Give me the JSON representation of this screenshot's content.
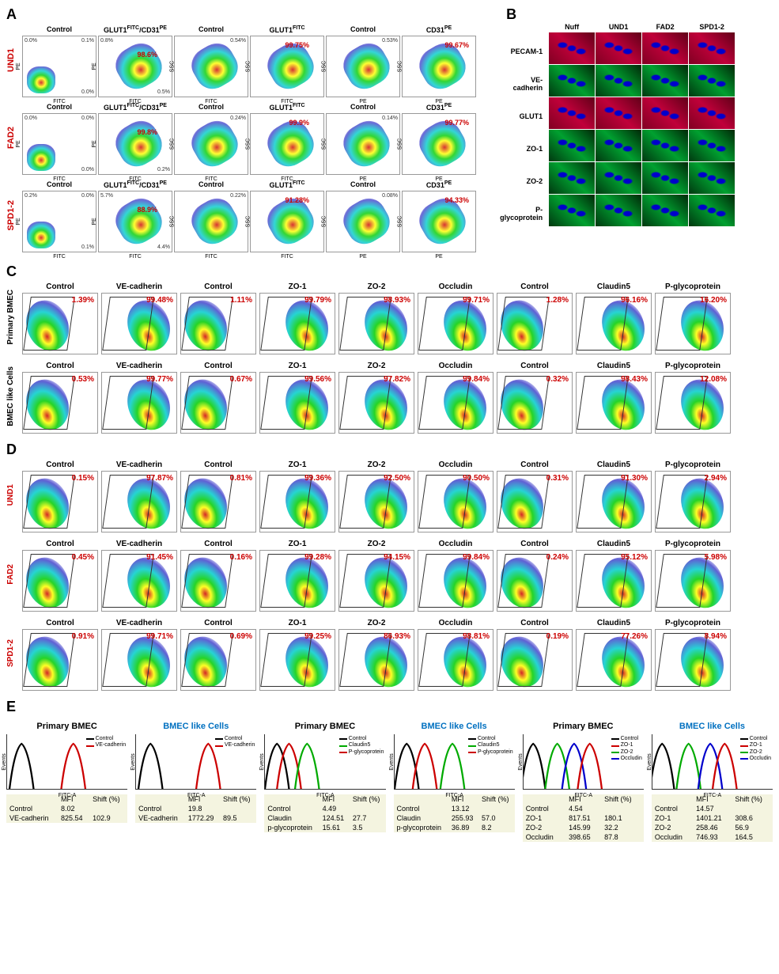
{
  "panelA": {
    "label": "A",
    "rows": [
      {
        "name": "UND1",
        "plots": [
          {
            "title": "Control",
            "yaxis": "PE",
            "xaxis": "FITC",
            "corners": [
              "0.0%",
              "0.1%",
              "",
              "0.0%"
            ],
            "dotsClass": "corner"
          },
          {
            "title": "GLUT1<sup>FITC</sup>/CD31<sup>PE</sup>",
            "yaxis": "PE",
            "xaxis": "FITC",
            "value": "98.6%",
            "valuePos": "top:18px;right:18px;",
            "corners": [
              "0.8%",
              "",
              "",
              "0.5%"
            ],
            "dotsClass": "diag"
          },
          {
            "title": "Control",
            "yaxis": "SSC",
            "xaxis": "FITC",
            "corners": [
              "",
              "0.54%",
              "",
              ""
            ],
            "dotsClass": "diag"
          },
          {
            "title": "GLUT1<sup>FITC</sup>",
            "yaxis": "SSC",
            "xaxis": "FITC",
            "value": "99.75%",
            "valuePos": "top:6px;right:18px;",
            "dotsClass": "diag"
          },
          {
            "title": "Control",
            "yaxis": "SSC",
            "xaxis": "PE",
            "corners": [
              "",
              "0.53%",
              "",
              ""
            ],
            "dotsClass": "diag"
          },
          {
            "title": "CD31<sup>PE</sup>",
            "yaxis": "SSC",
            "xaxis": "PE",
            "value": "99.67%",
            "valuePos": "top:6px;right:8px;",
            "dotsClass": "diag"
          }
        ]
      },
      {
        "name": "FAD2",
        "plots": [
          {
            "title": "Control",
            "yaxis": "PE",
            "xaxis": "FITC",
            "corners": [
              "0.0%",
              "0.0%",
              "",
              "0.0%"
            ],
            "dotsClass": "corner"
          },
          {
            "title": "GLUT1<sup>FITC</sup>/CD31<sup>PE</sup>",
            "yaxis": "PE",
            "xaxis": "FITC",
            "value": "99.8%",
            "valuePos": "top:18px;right:18px;",
            "corners": [
              "",
              "",
              "",
              "0.2%"
            ],
            "dotsClass": "diag"
          },
          {
            "title": "Control",
            "yaxis": "SSC",
            "xaxis": "FITC",
            "corners": [
              "",
              "0.24%",
              "",
              ""
            ],
            "dotsClass": "diag"
          },
          {
            "title": "GLUT1<sup>FITC</sup>",
            "yaxis": "SSC",
            "xaxis": "FITC",
            "value": "99.9%",
            "valuePos": "top:6px;right:18px;",
            "dotsClass": "diag"
          },
          {
            "title": "Control",
            "yaxis": "SSC",
            "xaxis": "PE",
            "corners": [
              "",
              "0.14%",
              "",
              ""
            ],
            "dotsClass": "diag"
          },
          {
            "title": "CD31<sup>PE</sup>",
            "yaxis": "SSC",
            "xaxis": "PE",
            "value": "99.77%",
            "valuePos": "top:6px;right:8px;",
            "dotsClass": "diag"
          }
        ]
      },
      {
        "name": "SPD1-2",
        "plots": [
          {
            "title": "Control",
            "yaxis": "PE",
            "xaxis": "FITC",
            "corners": [
              "0.2%",
              "0.0%",
              "",
              "0.1%"
            ],
            "dotsClass": "corner"
          },
          {
            "title": "GLUT1<sup>FITC</sup>/CD31<sup>PE</sup>",
            "yaxis": "PE",
            "xaxis": "FITC",
            "value": "88.9%",
            "valuePos": "top:18px;right:18px;",
            "corners": [
              "5.7%",
              "",
              "",
              "4.4%"
            ],
            "dotsClass": "diag"
          },
          {
            "title": "Control",
            "yaxis": "SSC",
            "xaxis": "FITC",
            "corners": [
              "",
              "0.22%",
              "",
              ""
            ],
            "dotsClass": "diag"
          },
          {
            "title": "GLUT1<sup>FITC</sup>",
            "yaxis": "SSC",
            "xaxis": "FITC",
            "value": "91.28%",
            "valuePos": "top:6px;right:18px;",
            "dotsClass": "diag"
          },
          {
            "title": "Control",
            "yaxis": "SSC",
            "xaxis": "PE",
            "corners": [
              "",
              "0.08%",
              "",
              ""
            ],
            "dotsClass": "diag"
          },
          {
            "title": "CD31<sup>PE</sup>",
            "yaxis": "SSC",
            "xaxis": "PE",
            "value": "94.33%",
            "valuePos": "top:6px;right:8px;",
            "dotsClass": "diag"
          }
        ]
      }
    ]
  },
  "panelB": {
    "label": "B",
    "cols": [
      "Nuff",
      "UND1",
      "FAD2",
      "SPD1-2"
    ],
    "rows": [
      {
        "label": "PECAM-1",
        "color": "red"
      },
      {
        "label": "VE-cadherin",
        "color": "green"
      },
      {
        "label": "GLUT1",
        "color": "red"
      },
      {
        "label": "ZO-1",
        "color": "green"
      },
      {
        "label": "ZO-2",
        "color": "green"
      },
      {
        "label": "P-glycoprotein",
        "color": "green"
      }
    ]
  },
  "panelC": {
    "label": "C",
    "markers": [
      "Control",
      "VE-cadherin",
      "Control",
      "ZO-1",
      "ZO-2",
      "Occludin",
      "Control",
      "Claudin5",
      "P-glycoprotein"
    ],
    "rows": [
      {
        "name": "Primary BMEC",
        "values": [
          "1.39%",
          "99.48%",
          "1.11%",
          "99.79%",
          "98.93%",
          "99.71%",
          "1.28%",
          "96.16%",
          "16.20%"
        ],
        "red": false
      },
      {
        "name": "BMEC like Cells",
        "values": [
          "0.53%",
          "99.77%",
          "0.67%",
          "99.56%",
          "97.82%",
          "99.84%",
          "0.32%",
          "98.43%",
          "12.08%"
        ],
        "red": false
      }
    ]
  },
  "panelD": {
    "label": "D",
    "markers": [
      "Control",
      "VE-cadherin",
      "Control",
      "ZO-1",
      "ZO-2",
      "Occludin",
      "Control",
      "Claudin5",
      "P-glycoprotein"
    ],
    "rows": [
      {
        "name": "UND1",
        "values": [
          "0.15%",
          "97.87%",
          "0.81%",
          "99.36%",
          "92.50%",
          "90.50%",
          "0.31%",
          "91.30%",
          "2.94%"
        ],
        "red": true
      },
      {
        "name": "FAD2",
        "values": [
          "0.45%",
          "91.45%",
          "0.16%",
          "99.28%",
          "94.15%",
          "99.84%",
          "0.24%",
          "95.12%",
          "5.98%"
        ],
        "red": true
      },
      {
        "name": "SPD1-2",
        "values": [
          "0.91%",
          "99.71%",
          "0.69%",
          "99.25%",
          "86.93%",
          "98.81%",
          "0.19%",
          "77.26%",
          "8.94%"
        ],
        "red": true
      }
    ]
  },
  "panelE": {
    "label": "E",
    "cols": [
      {
        "title": "Primary BMEC",
        "blue": false,
        "legend": [
          {
            "c": "#000",
            "l": "Control"
          },
          {
            "c": "#c00",
            "l": "VE-cadherin"
          }
        ],
        "curves": [
          {
            "c": "#000",
            "x": 12
          },
          {
            "c": "#c00",
            "x": 55
          }
        ],
        "table": {
          "headers": [
            "",
            "MFI",
            "Shift (%)"
          ],
          "rows": [
            [
              "Control",
              "8.02",
              ""
            ],
            [
              "VE-cadherin",
              "825.54",
              "102.9"
            ]
          ]
        }
      },
      {
        "title": "BMEC like Cells",
        "blue": true,
        "legend": [
          {
            "c": "#000",
            "l": "Control"
          },
          {
            "c": "#c00",
            "l": "VE-cadherin"
          }
        ],
        "curves": [
          {
            "c": "#000",
            "x": 12
          },
          {
            "c": "#c00",
            "x": 60
          }
        ],
        "table": {
          "headers": [
            "",
            "MFI",
            "Shift (%)"
          ],
          "rows": [
            [
              "Control",
              "19.8",
              ""
            ],
            [
              "VE-cadherin",
              "1772.29",
              "89.5"
            ]
          ]
        }
      },
      {
        "title": "Primary BMEC",
        "blue": false,
        "legend": [
          {
            "c": "#000",
            "l": "Control"
          },
          {
            "c": "#0a0",
            "l": "Claudin5"
          },
          {
            "c": "#c00",
            "l": "P-glycoprotein"
          }
        ],
        "curves": [
          {
            "c": "#000",
            "x": 10
          },
          {
            "c": "#c00",
            "x": 20
          },
          {
            "c": "#0a0",
            "x": 35
          }
        ],
        "table": {
          "headers": [
            "",
            "MFI",
            "Shift (%)"
          ],
          "rows": [
            [
              "Control",
              "4.49",
              ""
            ],
            [
              "Claudin",
              "124.51",
              "27.7"
            ],
            [
              "p-glycoprotein",
              "15.61",
              "3.5"
            ]
          ]
        }
      },
      {
        "title": "BMEC like Cells",
        "blue": true,
        "legend": [
          {
            "c": "#000",
            "l": "Control"
          },
          {
            "c": "#0a0",
            "l": "Claudin5"
          },
          {
            "c": "#c00",
            "l": "P-glycoprotein"
          }
        ],
        "curves": [
          {
            "c": "#000",
            "x": 10
          },
          {
            "c": "#c00",
            "x": 25
          },
          {
            "c": "#0a0",
            "x": 48
          }
        ],
        "table": {
          "headers": [
            "",
            "MFI",
            "Shift (%)"
          ],
          "rows": [
            [
              "Control",
              "13.12",
              ""
            ],
            [
              "Claudin",
              "255.93",
              "57.0"
            ],
            [
              "p-glycoprotein",
              "36.89",
              "8.2"
            ]
          ]
        }
      },
      {
        "title": "Primary BMEC",
        "blue": false,
        "legend": [
          {
            "c": "#000",
            "l": "Control"
          },
          {
            "c": "#c00",
            "l": "ZO-1"
          },
          {
            "c": "#0a0",
            "l": "ZO-2"
          },
          {
            "c": "#00c",
            "l": "Occludin"
          }
        ],
        "curves": [
          {
            "c": "#000",
            "x": 8
          },
          {
            "c": "#0a0",
            "x": 28
          },
          {
            "c": "#00c",
            "x": 42
          },
          {
            "c": "#c00",
            "x": 55
          }
        ],
        "table": {
          "headers": [
            "",
            "MFI",
            "Shift (%)"
          ],
          "rows": [
            [
              "Control",
              "4.54",
              ""
            ],
            [
              "ZO-1",
              "817.51",
              "180.1"
            ],
            [
              "ZO-2",
              "145.99",
              "32.2"
            ],
            [
              "Occludin",
              "398.65",
              "87.8"
            ]
          ]
        }
      },
      {
        "title": "BMEC like Cells",
        "blue": true,
        "legend": [
          {
            "c": "#000",
            "l": "Control"
          },
          {
            "c": "#c00",
            "l": "ZO-1"
          },
          {
            "c": "#0a0",
            "l": "ZO-2"
          },
          {
            "c": "#00c",
            "l": "Occludin"
          }
        ],
        "curves": [
          {
            "c": "#000",
            "x": 8
          },
          {
            "c": "#0a0",
            "x": 30
          },
          {
            "c": "#00c",
            "x": 48
          },
          {
            "c": "#c00",
            "x": 60
          }
        ],
        "table": {
          "headers": [
            "",
            "MFI",
            "Shift (%)"
          ],
          "rows": [
            [
              "Control",
              "14.57",
              ""
            ],
            [
              "ZO-1",
              "1401.21",
              "308.6"
            ],
            [
              "ZO-2",
              "258.46",
              "56.9"
            ],
            [
              "Occludin",
              "746.93",
              "164.5"
            ]
          ]
        }
      }
    ]
  }
}
